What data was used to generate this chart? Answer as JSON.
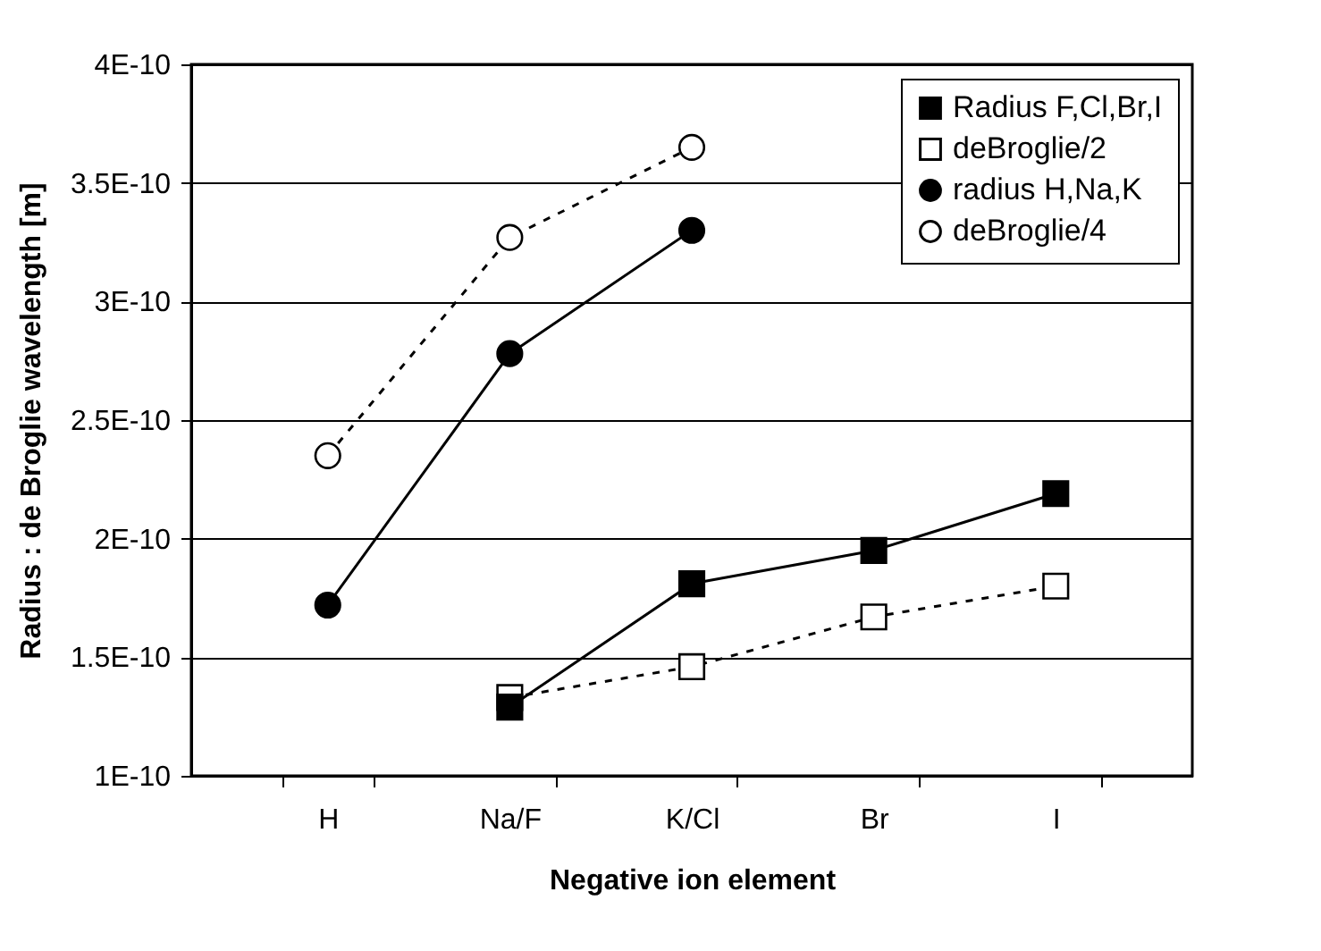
{
  "chart_data": {
    "type": "line",
    "xlabel": "Negative ion element",
    "ylabel": "Radius :  de Broglie wavelength [m]",
    "categories": [
      "H",
      "Na/F",
      "K/Cl",
      "Br",
      "I"
    ],
    "series": [
      {
        "name": "Radius F,Cl,Br,I",
        "color": "#000000",
        "marker": "square",
        "line_style": "solid",
        "values": [
          null,
          1.29e-10,
          1.81e-10,
          1.95e-10,
          2.19e-10
        ]
      },
      {
        "name": "deBroglie/2",
        "color": "#000000",
        "marker": "square",
        "line_style": "dashed",
        "values": [
          null,
          1.33e-10,
          1.46e-10,
          1.67e-10,
          1.8e-10
        ]
      },
      {
        "name": "radius H,Na,K",
        "color": "#000000",
        "marker": "circle",
        "line_style": "solid",
        "values": [
          1.72e-10,
          2.78e-10,
          3.3e-10,
          null,
          null
        ]
      },
      {
        "name": "deBroglie/4",
        "color": "#000000",
        "marker": "circle",
        "line_style": "dashed",
        "values": [
          2.35e-10,
          3.27e-10,
          3.65e-10,
          null,
          null
        ]
      }
    ],
    "ylim": [
      1e-10,
      4e-10
    ],
    "yticks": [
      {
        "value": 1e-10,
        "label": "1E-10"
      },
      {
        "value": 1.5e-10,
        "label": "1.5E-10"
      },
      {
        "value": 2e-10,
        "label": "2E-10"
      },
      {
        "value": 2.5e-10,
        "label": "2.5E-10"
      },
      {
        "value": 3e-10,
        "label": "3E-10"
      },
      {
        "value": 3.5e-10,
        "label": "3.5E-10"
      },
      {
        "value": 4e-10,
        "label": "4E-10"
      }
    ],
    "grid": "y",
    "legend": "top right"
  }
}
